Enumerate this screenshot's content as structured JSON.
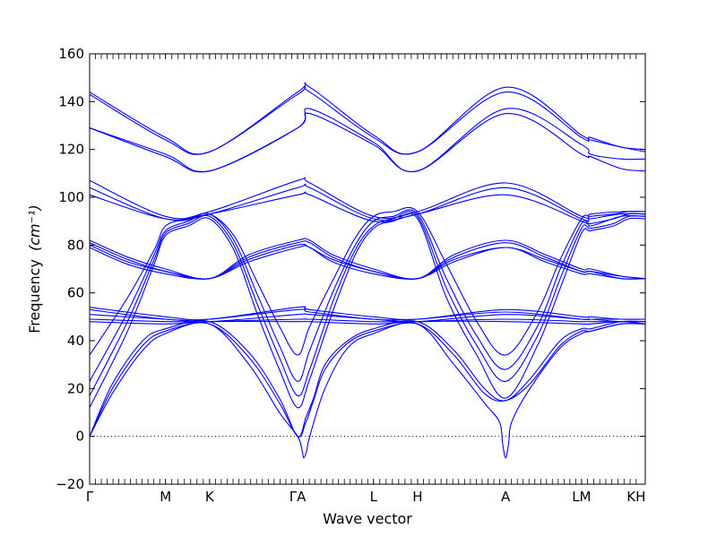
{
  "chart_data": {
    "type": "line",
    "title": "",
    "xlabel": "Wave vector",
    "ylabel": "Frequency",
    "ylabel_unit": "(cm⁻¹)",
    "ylim": [
      -20,
      160
    ],
    "yticks": [
      -20,
      0,
      20,
      40,
      60,
      80,
      100,
      120,
      140,
      160
    ],
    "grid": false,
    "legend": "none",
    "line_color": "#0000ff",
    "zero_line": {
      "y": 0,
      "style": "dotted",
      "color": "#000000"
    },
    "high_symmetry_points": [
      {
        "label": "Γ",
        "x": 0.0
      },
      {
        "label": "M",
        "x": 1.0
      },
      {
        "label": "K",
        "x": 1.58
      },
      {
        "label": "ΓA",
        "x": 2.74
      },
      {
        "label": "L",
        "x": 3.74
      },
      {
        "label": "H",
        "x": 4.32
      },
      {
        "label": "A",
        "x": 5.48
      },
      {
        "label": "LM",
        "x": 6.48
      },
      {
        "label": "KH",
        "x": 7.2
      }
    ],
    "xlim": [
      0,
      7.32
    ],
    "series": [
      {
        "x": [
          0.0,
          1.0,
          1.58,
          2.74,
          2.9,
          3.74,
          4.32,
          5.48,
          6.48,
          6.6,
          7.0,
          7.32
        ],
        "values": [
          144,
          125,
          119,
          144,
          146,
          126,
          119,
          146,
          126,
          125,
          121,
          120
        ]
      },
      {
        "x": [
          0.0,
          1.0,
          1.58,
          2.74,
          2.9,
          3.74,
          4.32,
          5.48,
          6.48,
          6.6,
          7.0,
          7.32
        ],
        "values": [
          143,
          124,
          119,
          143,
          144,
          125,
          119,
          144,
          125,
          124,
          121,
          119
        ]
      },
      {
        "x": [
          0.0,
          1.0,
          1.58,
          2.74,
          2.9,
          3.74,
          4.32,
          5.48,
          6.48,
          6.6,
          7.0,
          7.32
        ],
        "values": [
          129,
          118,
          111,
          129,
          137,
          123,
          111,
          137,
          122,
          118,
          116,
          116
        ]
      },
      {
        "x": [
          0.0,
          1.0,
          1.58,
          2.74,
          2.9,
          3.74,
          4.32,
          5.48,
          6.48,
          6.6,
          7.0,
          7.32
        ],
        "values": [
          129,
          117,
          111,
          129,
          135,
          122,
          111,
          135,
          118,
          117,
          112,
          111
        ]
      },
      {
        "x": [
          0.0,
          1.0,
          1.58,
          2.74,
          2.9,
          3.74,
          4.32,
          5.48,
          6.48,
          6.6,
          7.0,
          7.32
        ],
        "values": [
          107,
          92,
          94,
          107,
          106,
          92,
          94,
          106,
          92,
          93,
          94,
          94
        ]
      },
      {
        "x": [
          0.0,
          1.0,
          1.58,
          2.74,
          2.9,
          3.74,
          4.32,
          5.48,
          6.48,
          6.6,
          7.0,
          7.32
        ],
        "values": [
          104,
          91,
          93,
          104,
          104,
          91,
          93,
          104,
          91,
          91,
          93,
          93
        ]
      },
      {
        "x": [
          0.0,
          1.0,
          1.58,
          2.74,
          2.9,
          3.74,
          4.32,
          5.48,
          6.48,
          6.6,
          7.0,
          7.32
        ],
        "values": [
          101,
          91,
          93,
          101,
          101,
          90,
          93,
          101,
          90,
          88,
          92,
          92
        ]
      },
      {
        "x": [
          0.0,
          0.5,
          1.0,
          1.58,
          2.1,
          2.74,
          2.9,
          3.2,
          3.74,
          4.32,
          4.8,
          5.48,
          6.0,
          6.48,
          6.6,
          7.0,
          7.32
        ],
        "values": [
          82,
          75,
          70,
          66,
          76,
          82,
          82,
          76,
          70,
          66,
          76,
          82,
          76,
          70,
          70,
          67,
          66
        ]
      },
      {
        "x": [
          0.0,
          0.5,
          1.0,
          1.58,
          2.1,
          2.74,
          2.9,
          3.2,
          3.74,
          4.32,
          4.8,
          5.48,
          6.0,
          6.48,
          6.6,
          7.0,
          7.32
        ],
        "values": [
          81,
          74,
          69,
          66,
          75,
          81,
          81,
          75,
          69,
          66,
          75,
          81,
          75,
          69,
          69,
          67,
          66
        ]
      },
      {
        "x": [
          0.0,
          0.5,
          1.0,
          1.58,
          2.1,
          2.74,
          2.9,
          3.2,
          3.74,
          4.32,
          4.8,
          5.48,
          6.0,
          6.48,
          6.6,
          7.0,
          7.32
        ],
        "values": [
          80,
          73,
          69,
          66,
          74,
          80,
          79,
          74,
          69,
          66,
          74,
          79,
          74,
          69,
          69,
          66,
          66
        ]
      },
      {
        "x": [
          0.0,
          0.5,
          1.0,
          1.58,
          2.1,
          2.74,
          2.9,
          3.2,
          3.74,
          4.32,
          4.8,
          5.48,
          6.0,
          6.48,
          6.6,
          7.0,
          7.32
        ],
        "values": [
          79,
          72,
          68,
          66,
          73,
          79,
          79,
          73,
          68,
          66,
          73,
          79,
          73,
          68,
          68,
          66,
          66
        ]
      },
      {
        "x": [
          0.0,
          0.5,
          0.85,
          1.0,
          1.3,
          1.58,
          1.9,
          2.2,
          2.5,
          2.74,
          2.9,
          3.2,
          3.5,
          3.74,
          4.0,
          4.32,
          4.7,
          5.1,
          5.48,
          5.9,
          6.2,
          6.48,
          6.6,
          6.9,
          7.1,
          7.32
        ],
        "values": [
          34,
          58,
          78,
          88,
          91,
          93,
          84,
          65,
          46,
          34,
          46,
          65,
          83,
          92,
          94,
          94,
          72,
          48,
          34,
          52,
          74,
          91,
          92,
          93,
          94,
          94
        ]
      },
      {
        "x": [
          0.0,
          0.5,
          0.85,
          1.0,
          1.3,
          1.58,
          1.9,
          2.2,
          2.5,
          2.74,
          2.9,
          3.2,
          3.5,
          3.74,
          4.0,
          4.32,
          4.7,
          5.1,
          5.48,
          5.9,
          6.2,
          6.48,
          6.6,
          6.9,
          7.1,
          7.32
        ],
        "values": [
          23,
          52,
          76,
          86,
          90,
          93,
          82,
          60,
          38,
          23,
          36,
          60,
          80,
          90,
          92,
          93,
          66,
          42,
          28,
          46,
          70,
          89,
          89,
          91,
          93,
          93
        ]
      },
      {
        "x": [
          0.0,
          0.5,
          0.85,
          1.0,
          1.3,
          1.58,
          1.9,
          2.2,
          2.5,
          2.74,
          2.9,
          3.2,
          3.5,
          3.74,
          4.0,
          4.32,
          4.7,
          5.1,
          5.48,
          5.9,
          6.2,
          6.48,
          6.6,
          6.9,
          7.1,
          7.32
        ],
        "values": [
          17,
          48,
          74,
          85,
          89,
          92,
          80,
          56,
          33,
          17,
          28,
          56,
          78,
          88,
          91,
          92,
          62,
          38,
          23,
          42,
          66,
          87,
          87,
          89,
          92,
          92
        ]
      },
      {
        "x": [
          0.0,
          0.5,
          0.85,
          1.0,
          1.3,
          1.58,
          1.9,
          2.2,
          2.5,
          2.74,
          2.9,
          3.2,
          3.5,
          3.74,
          4.0,
          4.32,
          4.7,
          5.1,
          5.48,
          5.9,
          6.2,
          6.48,
          6.6,
          6.9,
          7.1,
          7.32
        ],
        "values": [
          12,
          44,
          72,
          84,
          88,
          91,
          78,
          52,
          28,
          12,
          24,
          52,
          76,
          87,
          90,
          91,
          58,
          34,
          16,
          38,
          62,
          85,
          86,
          88,
          91,
          91
        ]
      },
      {
        "x": [
          0.0,
          1.0,
          1.58,
          2.74,
          2.9,
          3.74,
          4.32,
          5.48,
          6.48,
          6.6,
          7.0,
          7.32
        ],
        "values": [
          54,
          50,
          49,
          54,
          53,
          50,
          49,
          53,
          50,
          50,
          49,
          49
        ]
      },
      {
        "x": [
          0.0,
          1.0,
          1.58,
          2.74,
          2.9,
          3.74,
          4.32,
          5.48,
          6.48,
          6.6,
          7.0,
          7.32
        ],
        "values": [
          53,
          49,
          49,
          53,
          52,
          49,
          49,
          52,
          49,
          49,
          49,
          49
        ]
      },
      {
        "x": [
          0.0,
          1.0,
          1.58,
          2.74,
          2.9,
          3.74,
          4.32,
          5.48,
          6.48,
          6.6,
          7.0,
          7.32
        ],
        "values": [
          51,
          49,
          48,
          51,
          51,
          49,
          48,
          51,
          49,
          49,
          48,
          48
        ]
      },
      {
        "x": [
          0.0,
          1.0,
          1.58,
          2.74,
          2.9,
          3.74,
          4.32,
          5.48,
          6.48,
          6.6,
          7.0,
          7.32
        ],
        "values": [
          49,
          48,
          48,
          49,
          49,
          48,
          48,
          49,
          48,
          48,
          48,
          48
        ]
      },
      {
        "x": [
          0.0,
          1.0,
          1.58,
          2.74,
          2.9,
          3.74,
          4.32,
          5.48,
          6.48,
          6.6,
          7.0,
          7.32
        ],
        "values": [
          48,
          47,
          48,
          48,
          48,
          47,
          48,
          48,
          47,
          47,
          48,
          47
        ]
      },
      {
        "x": [
          0.0,
          0.3,
          0.7,
          1.0,
          1.58,
          2.1,
          2.5,
          2.74,
          2.85,
          2.95,
          3.1,
          3.4,
          3.74,
          4.32,
          4.8,
          5.2,
          5.48,
          5.8,
          6.2,
          6.48,
          6.6,
          7.0,
          7.32
        ],
        "values": [
          0,
          22,
          40,
          45,
          48,
          35,
          16,
          0,
          8,
          16,
          30,
          40,
          45,
          48,
          36,
          20,
          15,
          24,
          40,
          45,
          45,
          48,
          48
        ]
      },
      {
        "x": [
          0.0,
          0.3,
          0.7,
          1.0,
          1.58,
          2.1,
          2.5,
          2.74,
          2.85,
          2.95,
          3.1,
          3.4,
          3.74,
          4.32,
          4.8,
          5.2,
          5.48,
          5.8,
          6.2,
          6.48,
          6.6,
          7.0,
          7.32
        ],
        "values": [
          0,
          20,
          38,
          44,
          47,
          33,
          14,
          0,
          6,
          15,
          28,
          39,
          44,
          47,
          34,
          18,
          15,
          22,
          38,
          44,
          44,
          47,
          47
        ]
      },
      {
        "x": [
          0.0,
          0.3,
          0.7,
          1.0,
          1.58,
          2.1,
          2.5,
          2.74,
          2.8,
          2.82,
          2.86,
          2.9,
          3.1,
          3.4,
          3.74,
          4.32,
          4.8,
          5.2,
          5.4,
          5.44,
          5.48,
          5.52,
          5.56,
          5.8,
          6.2,
          6.48,
          6.6,
          7.0,
          7.32
        ],
        "values": [
          0,
          18,
          36,
          43,
          47,
          30,
          10,
          0,
          -6,
          -9,
          -6,
          0,
          20,
          37,
          43,
          47,
          30,
          14,
          6,
          -3,
          -9,
          -3,
          6,
          20,
          37,
          43,
          44,
          47,
          47
        ]
      }
    ]
  }
}
